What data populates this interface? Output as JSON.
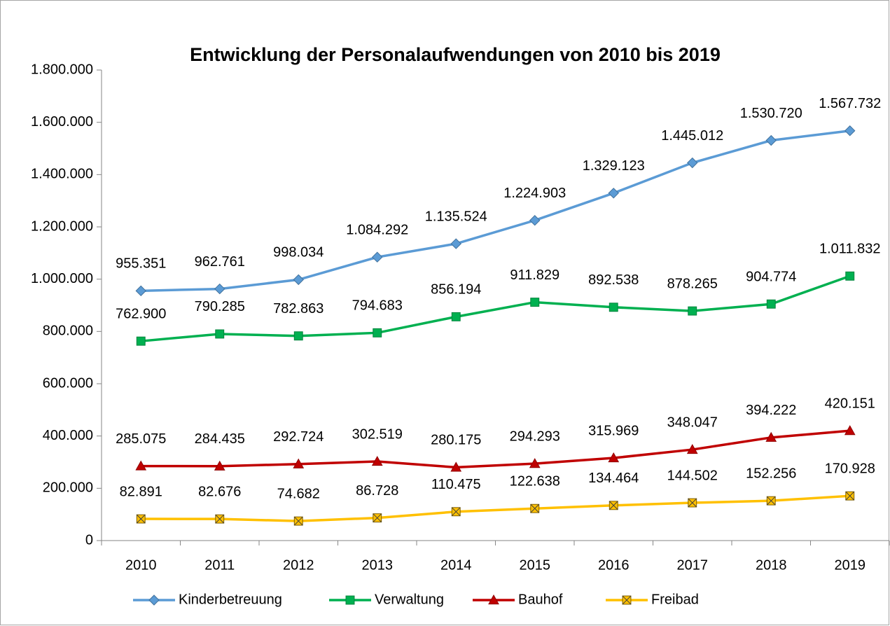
{
  "chart_data": {
    "type": "line",
    "title": "Entwicklung der Personalaufwendungen von 2010 bis 2019",
    "categories": [
      "2010",
      "2011",
      "2012",
      "2013",
      "2014",
      "2015",
      "2016",
      "2017",
      "2018",
      "2019"
    ],
    "series": [
      {
        "name": "Kinderbetreuung",
        "color": "#5b9bd5",
        "marker": "diamond",
        "values": [
          955351,
          962761,
          998034,
          1084292,
          1135524,
          1224903,
          1329123,
          1445012,
          1530720,
          1567732
        ],
        "value_labels": [
          "955.351",
          "962.761",
          "998.034",
          "1.084.292",
          "1.135.524",
          "1.224.903",
          "1.329.123",
          "1.445.012",
          "1.530.720",
          "1.567.732"
        ]
      },
      {
        "name": "Verwaltung",
        "color": "#00b050",
        "marker": "square",
        "values": [
          762900,
          790285,
          782863,
          794683,
          856194,
          911829,
          892538,
          878265,
          904774,
          1011832
        ],
        "value_labels": [
          "762.900",
          "790.285",
          "782.863",
          "794.683",
          "856.194",
          "911.829",
          "892.538",
          "878.265",
          "904.774",
          "1.011.832"
        ]
      },
      {
        "name": "Bauhof",
        "color": "#c00000",
        "marker": "triangle",
        "values": [
          285075,
          284435,
          292724,
          302519,
          280175,
          294293,
          315969,
          348047,
          394222,
          420151
        ],
        "value_labels": [
          "285.075",
          "284.435",
          "292.724",
          "302.519",
          "280.175",
          "294.293",
          "315.969",
          "348.047",
          "394.222",
          "420.151"
        ]
      },
      {
        "name": "Freibad",
        "color": "#ffc000",
        "marker": "xsquare",
        "values": [
          82891,
          82676,
          74682,
          86728,
          110475,
          122638,
          134464,
          144502,
          152256,
          170928
        ],
        "value_labels": [
          "82.891",
          "82.676",
          "74.682",
          "86.728",
          "110.475",
          "122.638",
          "134.464",
          "144.502",
          "152.256",
          "170.928"
        ]
      }
    ],
    "ylim": [
      0,
      1800000
    ],
    "yticks": [
      0,
      {
        "value": 200000,
        "label": "200.000"
      },
      {
        "value": 400000,
        "label": "400.000"
      },
      {
        "value": 600000,
        "label": "600.000"
      },
      {
        "value": 800000,
        "label": "800.000"
      },
      {
        "value": 1000000,
        "label": "1.000.000"
      },
      {
        "value": 1200000,
        "label": "1.200.000"
      },
      {
        "value": 1400000,
        "label": "1.400.000"
      },
      {
        "value": 1600000,
        "label": "1.600.000"
      },
      {
        "value": 1800000,
        "label": "1.800.000"
      }
    ],
    "grid": false,
    "legend": "bottom"
  }
}
